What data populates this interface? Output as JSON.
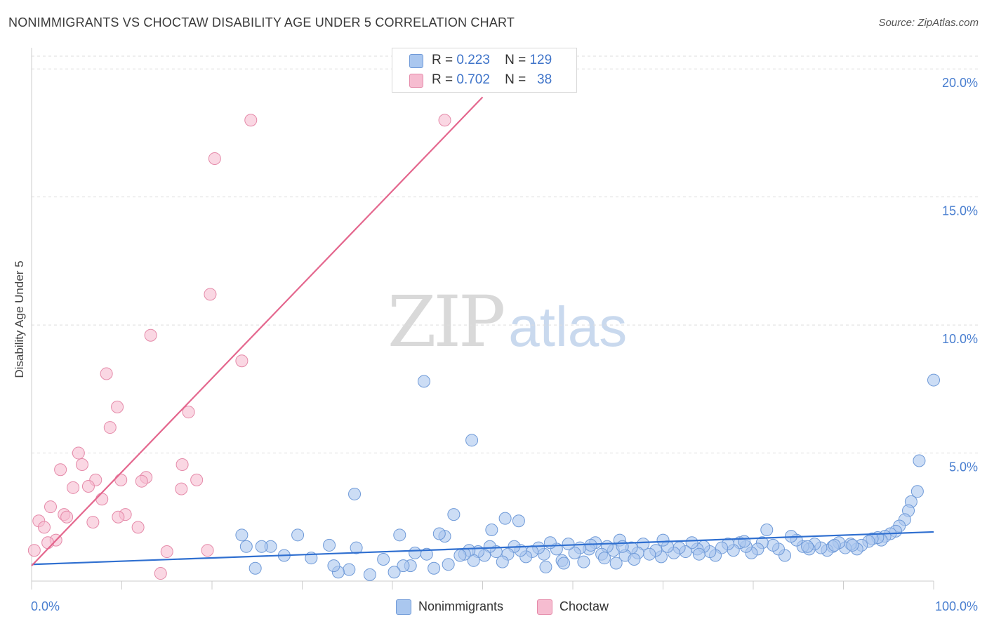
{
  "header": {
    "title": "NONIMMIGRANTS VS CHOCTAW DISABILITY AGE UNDER 5 CORRELATION CHART",
    "source": "Source: ZipAtlas.com"
  },
  "watermark": {
    "zip": "ZIP",
    "atlas": "atlas"
  },
  "legend_top": [
    {
      "r_label": "R =",
      "r_value": "0.223",
      "n_label": "N =",
      "n_value": "129",
      "color": "#aac7ef"
    },
    {
      "r_label": "R =",
      "r_value": "0.702",
      "n_label": "N =",
      "n_value": "38",
      "color": "#f6bcd0"
    }
  ],
  "legend_bottom": [
    {
      "label": "Nonimmigrants",
      "color": "#aac7ef"
    },
    {
      "label": "Choctaw",
      "color": "#f6bcd0"
    }
  ],
  "colors": {
    "blue_fill": "#aac7ef",
    "blue_stroke": "#6f9ad8",
    "blue_line": "#2f6fd0",
    "pink_fill": "#f6bcd0",
    "pink_stroke": "#e58aa9",
    "pink_line": "#e4678e",
    "tick_text": "#4a7fd0",
    "grid": "#dddddd"
  },
  "chart_data": {
    "type": "scatter",
    "title": "NONIMMIGRANTS VS CHOCTAW DISABILITY AGE UNDER 5 CORRELATION CHART",
    "xlabel": "",
    "ylabel": "Disability Age Under 5",
    "xlim": [
      0,
      100
    ],
    "ylim": [
      0,
      20.5
    ],
    "x_tick_labels": [
      "0.0%",
      "100.0%"
    ],
    "y_ticks": [
      5,
      10,
      15,
      20
    ],
    "y_tick_labels": [
      "5.0%",
      "10.0%",
      "15.0%",
      "20.0%"
    ],
    "series": [
      {
        "name": "Nonimmigrants",
        "R": 0.223,
        "N": 129,
        "trend": {
          "x0": 0,
          "y0": 0.65,
          "x1": 100,
          "y1": 1.92
        },
        "points": [
          [
            43.5,
            7.8
          ],
          [
            48.8,
            5.5
          ],
          [
            100.0,
            7.85
          ],
          [
            98.4,
            4.7
          ],
          [
            98.2,
            3.5
          ],
          [
            97.5,
            3.1
          ],
          [
            97.2,
            2.75
          ],
          [
            96.8,
            2.4
          ],
          [
            96.2,
            2.15
          ],
          [
            95.8,
            1.95
          ],
          [
            95.2,
            1.85
          ],
          [
            94.6,
            1.75
          ],
          [
            94.2,
            1.6
          ],
          [
            93.8,
            1.7
          ],
          [
            93.2,
            1.65
          ],
          [
            92.8,
            1.55
          ],
          [
            92.0,
            1.4
          ],
          [
            91.5,
            1.25
          ],
          [
            90.8,
            1.45
          ],
          [
            90.2,
            1.3
          ],
          [
            89.5,
            1.5
          ],
          [
            88.8,
            1.35
          ],
          [
            88.2,
            1.2
          ],
          [
            87.5,
            1.3
          ],
          [
            86.8,
            1.45
          ],
          [
            86.2,
            1.25
          ],
          [
            85.5,
            1.35
          ],
          [
            84.8,
            1.6
          ],
          [
            84.2,
            1.75
          ],
          [
            83.5,
            1.0
          ],
          [
            82.8,
            1.25
          ],
          [
            82.2,
            1.4
          ],
          [
            81.5,
            2.0
          ],
          [
            81.0,
            1.5
          ],
          [
            80.5,
            1.25
          ],
          [
            79.8,
            1.1
          ],
          [
            79.2,
            1.35
          ],
          [
            78.5,
            1.5
          ],
          [
            77.8,
            1.2
          ],
          [
            77.2,
            1.45
          ],
          [
            76.5,
            1.3
          ],
          [
            75.8,
            1.0
          ],
          [
            75.2,
            1.15
          ],
          [
            74.5,
            1.35
          ],
          [
            73.8,
            1.25
          ],
          [
            73.2,
            1.5
          ],
          [
            72.5,
            1.15
          ],
          [
            71.8,
            1.3
          ],
          [
            71.2,
            1.1
          ],
          [
            70.5,
            1.35
          ],
          [
            69.8,
            0.95
          ],
          [
            69.2,
            1.2
          ],
          [
            68.5,
            1.05
          ],
          [
            67.8,
            1.45
          ],
          [
            67.2,
            1.1
          ],
          [
            66.5,
            1.3
          ],
          [
            65.8,
            1.0
          ],
          [
            65.2,
            1.6
          ],
          [
            64.5,
            1.2
          ],
          [
            63.8,
            1.35
          ],
          [
            63.2,
            1.05
          ],
          [
            62.5,
            1.5
          ],
          [
            61.8,
            1.25
          ],
          [
            61.2,
            0.75
          ],
          [
            60.8,
            1.3
          ],
          [
            60.2,
            1.1
          ],
          [
            59.5,
            1.45
          ],
          [
            58.8,
            0.8
          ],
          [
            58.2,
            1.25
          ],
          [
            57.5,
            1.5
          ],
          [
            56.8,
            1.05
          ],
          [
            56.2,
            1.3
          ],
          [
            55.5,
            1.15
          ],
          [
            54.8,
            0.95
          ],
          [
            54.2,
            1.2
          ],
          [
            53.5,
            1.35
          ],
          [
            52.8,
            1.05
          ],
          [
            52.2,
            0.75
          ],
          [
            51.5,
            1.15
          ],
          [
            50.8,
            1.35
          ],
          [
            50.2,
            1.0
          ],
          [
            49.5,
            1.15
          ],
          [
            49.0,
            0.8
          ],
          [
            48.5,
            1.2
          ],
          [
            48.0,
            1.05
          ],
          [
            47.5,
            1.0
          ],
          [
            46.8,
            2.6
          ],
          [
            46.2,
            0.65
          ],
          [
            45.8,
            1.75
          ],
          [
            45.2,
            1.85
          ],
          [
            44.6,
            0.5
          ],
          [
            43.8,
            1.05
          ],
          [
            42.5,
            1.1
          ],
          [
            42.0,
            0.6
          ],
          [
            41.2,
            0.6
          ],
          [
            40.8,
            1.8
          ],
          [
            40.2,
            0.35
          ],
          [
            39.0,
            0.85
          ],
          [
            37.5,
            0.25
          ],
          [
            36.0,
            1.3
          ],
          [
            35.8,
            3.4
          ],
          [
            35.2,
            0.45
          ],
          [
            34.0,
            0.35
          ],
          [
            33.5,
            0.6
          ],
          [
            33.0,
            1.4
          ],
          [
            31.0,
            0.9
          ],
          [
            29.5,
            1.8
          ],
          [
            28.0,
            1.0
          ],
          [
            26.5,
            1.35
          ],
          [
            25.5,
            1.35
          ],
          [
            24.8,
            0.5
          ],
          [
            23.8,
            1.35
          ],
          [
            23.3,
            1.8
          ],
          [
            52.5,
            2.45
          ],
          [
            54.0,
            2.35
          ],
          [
            51.0,
            2.0
          ],
          [
            65.5,
            1.35
          ],
          [
            70.0,
            1.6
          ],
          [
            89.0,
            1.4
          ],
          [
            91.0,
            1.4
          ],
          [
            74.0,
            1.05
          ],
          [
            86.0,
            1.35
          ],
          [
            79.0,
            1.55
          ],
          [
            57.0,
            0.55
          ],
          [
            62.0,
            1.4
          ],
          [
            66.8,
            0.85
          ],
          [
            59.0,
            0.7
          ],
          [
            63.5,
            0.9
          ],
          [
            64.8,
            0.7
          ]
        ]
      },
      {
        "name": "Choctaw",
        "R": 0.702,
        "N": 38,
        "trend": {
          "x0": 0,
          "y0": 0.6,
          "x1": 50,
          "y1": 18.9
        },
        "points": [
          [
            45.8,
            18.0
          ],
          [
            24.3,
            18.0
          ],
          [
            20.3,
            16.5
          ],
          [
            19.8,
            11.2
          ],
          [
            13.2,
            9.6
          ],
          [
            23.3,
            8.6
          ],
          [
            8.3,
            8.1
          ],
          [
            9.5,
            6.8
          ],
          [
            17.4,
            6.6
          ],
          [
            8.7,
            6.0
          ],
          [
            5.2,
            5.0
          ],
          [
            5.6,
            4.55
          ],
          [
            16.7,
            4.55
          ],
          [
            3.2,
            4.35
          ],
          [
            7.1,
            3.95
          ],
          [
            9.9,
            3.95
          ],
          [
            12.7,
            4.05
          ],
          [
            12.2,
            3.9
          ],
          [
            18.3,
            3.95
          ],
          [
            4.6,
            3.65
          ],
          [
            6.3,
            3.7
          ],
          [
            16.6,
            3.6
          ],
          [
            7.8,
            3.2
          ],
          [
            2.1,
            2.9
          ],
          [
            3.6,
            2.6
          ],
          [
            3.9,
            2.5
          ],
          [
            10.4,
            2.6
          ],
          [
            0.8,
            2.35
          ],
          [
            6.8,
            2.3
          ],
          [
            9.6,
            2.5
          ],
          [
            11.8,
            2.1
          ],
          [
            1.4,
            2.1
          ],
          [
            2.7,
            1.6
          ],
          [
            1.8,
            1.5
          ],
          [
            0.3,
            1.2
          ],
          [
            15.0,
            1.15
          ],
          [
            19.5,
            1.2
          ],
          [
            14.3,
            0.3
          ]
        ]
      }
    ]
  }
}
